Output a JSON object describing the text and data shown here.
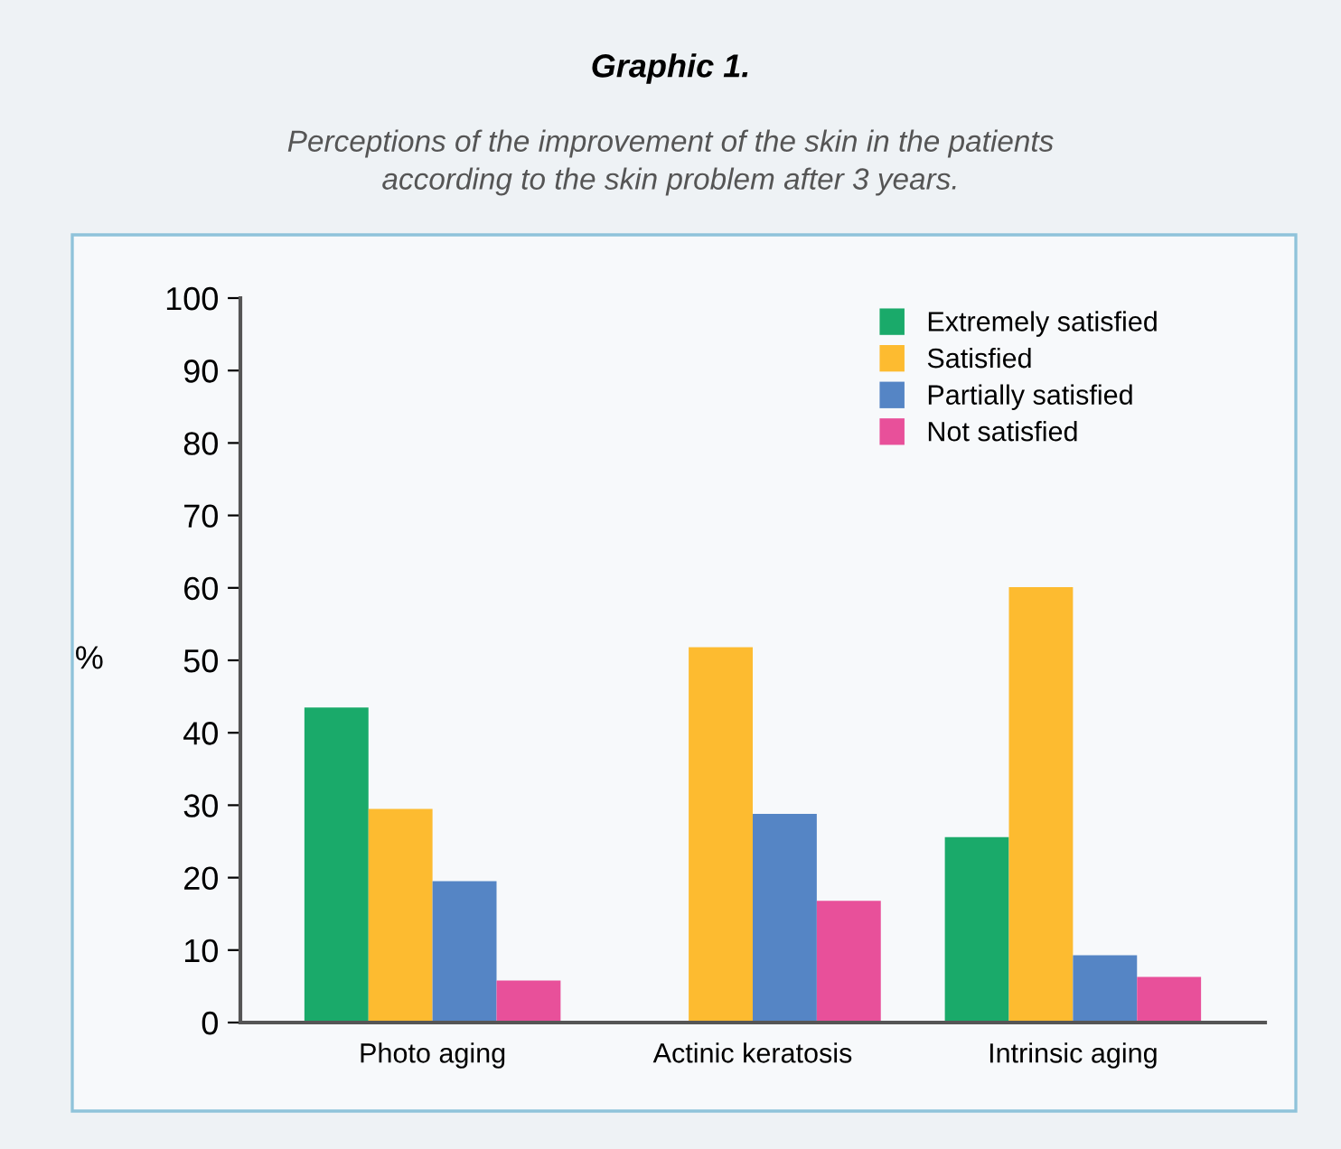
{
  "chart_data": {
    "type": "bar",
    "title": "Graphic 1.",
    "subtitle": "Perceptions of the improvement of the skin in the patients\naccording to the skin problem after 3 years.",
    "ylabel": "%",
    "categories": [
      "Photo aging",
      "Actinic keratosis",
      "Intrinsic aging"
    ],
    "series": [
      {
        "name": "Extremely satisfied",
        "color": "#1aaa6a",
        "values": [
          43.5,
          0,
          25.6
        ]
      },
      {
        "name": "Satisfied",
        "color": "#fdbb30",
        "values": [
          29.5,
          51.8,
          60.1
        ]
      },
      {
        "name": "Partially satisfied",
        "color": "#5585c5",
        "values": [
          19.5,
          28.8,
          9.3
        ]
      },
      {
        "name": "Not satisfied",
        "color": "#e8509a",
        "values": [
          5.8,
          16.8,
          6.3
        ]
      }
    ],
    "ylim": [
      0,
      100
    ],
    "yticks": [
      0,
      10,
      20,
      30,
      40,
      50,
      60,
      70,
      80,
      90,
      100
    ],
    "grid": false,
    "legend": "top right"
  }
}
